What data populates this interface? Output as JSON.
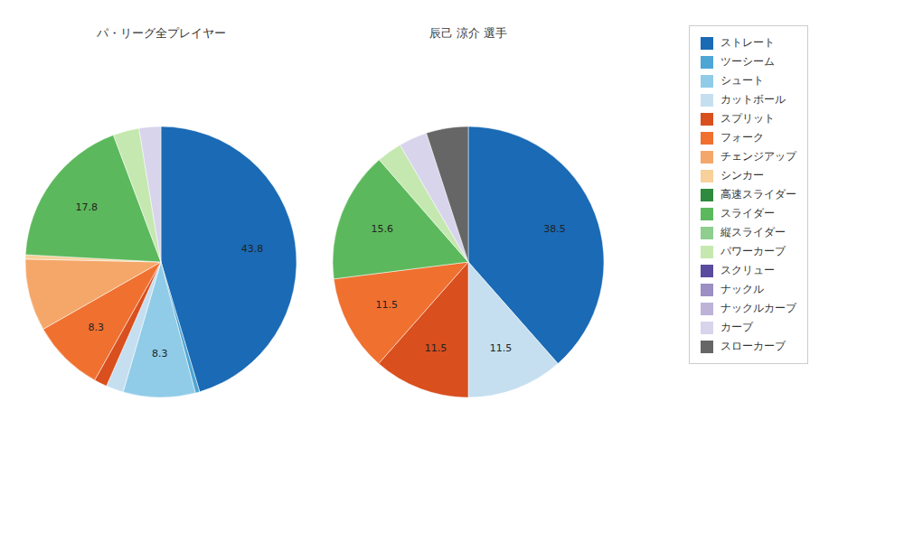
{
  "chart_data": [
    {
      "type": "pie",
      "title": "パ・リーグ全プレイヤー",
      "categories": [
        "ストレート",
        "ツーシーム",
        "シュート",
        "カットボール",
        "スプリット",
        "フォーク",
        "チェンジアップ",
        "シンカー",
        "高速スライダー",
        "スライダー",
        "縦スライダー",
        "パワーカーブ",
        "スクリュー",
        "ナックル",
        "ナックルカーブ",
        "カーブ",
        "スローカーブ"
      ],
      "values": [
        43.8,
        0.5,
        8.3,
        2.0,
        1.5,
        8.3,
        8.3,
        0.5,
        0.0,
        17.8,
        0.0,
        3.0,
        0.0,
        0.0,
        0.0,
        2.5,
        0.0
      ],
      "value_labels": [
        "43.8",
        null,
        "8.3",
        null,
        null,
        "8.3",
        null,
        null,
        null,
        "17.8",
        null,
        null,
        null,
        null,
        null,
        null,
        null
      ],
      "colors": [
        "#1a6ab5",
        "#4da6d4",
        "#90cce8",
        "#c5dff0",
        "#d94f1e",
        "#f07030",
        "#f5a76a",
        "#f7d09a",
        "#2d8a3e",
        "#5cb85c",
        "#8fce8f",
        "#c5e8b0",
        "#5a4b9e",
        "#9b8fc4",
        "#bdb3d8",
        "#d8d4ec",
        "#666666"
      ],
      "data_labels": true,
      "legend": "right"
    },
    {
      "type": "pie",
      "title": "辰己 涼介  選手",
      "categories": [
        "ストレート",
        "ツーシーム",
        "シュート",
        "カットボール",
        "スプリット",
        "フォーク",
        "チェンジアップ",
        "シンカー",
        "高速スライダー",
        "スライダー",
        "縦スライダー",
        "パワーカーブ",
        "スクリュー",
        "ナックル",
        "ナックルカーブ",
        "カーブ",
        "スローカーブ"
      ],
      "values": [
        38.5,
        0.0,
        0.0,
        11.5,
        11.5,
        11.5,
        0.0,
        0.0,
        0.0,
        15.6,
        0.0,
        3.0,
        0.0,
        0.0,
        0.0,
        3.4,
        5.0
      ],
      "value_labels": [
        "38.5",
        null,
        null,
        "11.5",
        "11.5",
        "11.5",
        null,
        null,
        null,
        "15.6",
        null,
        null,
        null,
        null,
        null,
        null,
        null
      ],
      "colors": [
        "#1a6ab5",
        "#4da6d4",
        "#90cce8",
        "#c5dff0",
        "#d94f1e",
        "#f07030",
        "#f5a76a",
        "#f7d09a",
        "#2d8a3e",
        "#5cb85c",
        "#8fce8f",
        "#c5e8b0",
        "#5a4b9e",
        "#9b8fc4",
        "#bdb3d8",
        "#d8d4ec",
        "#666666"
      ],
      "data_labels": true,
      "legend": "right"
    }
  ]
}
